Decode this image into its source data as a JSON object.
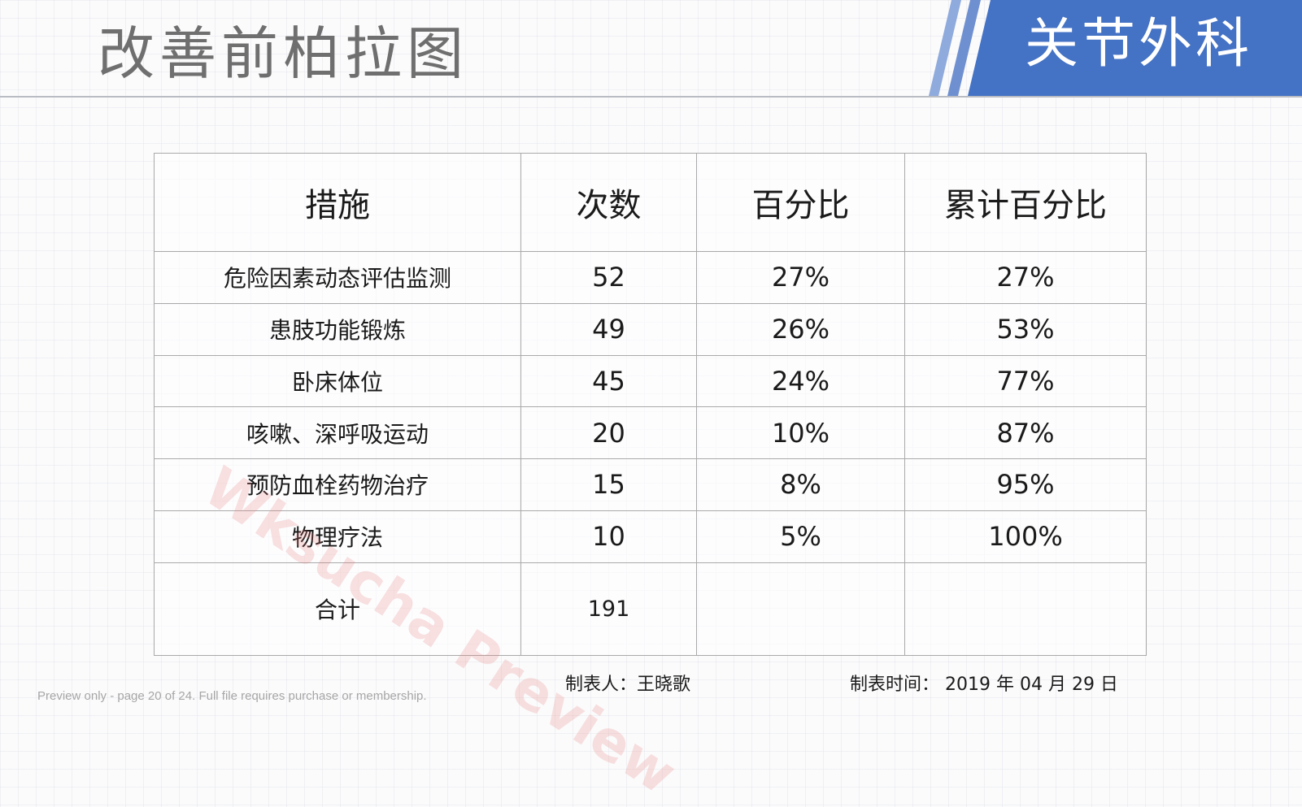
{
  "page": {
    "title": "改善前柏拉图",
    "department": "关节外科"
  },
  "table": {
    "headers": [
      "措施",
      "次数",
      "百分比",
      "累计百分比"
    ],
    "rows": [
      {
        "measure": "危险因素动态评估监测",
        "count": "52",
        "percent": "27%",
        "cumulative": "27%"
      },
      {
        "measure": "患肢功能锻炼",
        "count": "49",
        "percent": "26%",
        "cumulative": "53%"
      },
      {
        "measure": "卧床体位",
        "count": "45",
        "percent": "24%",
        "cumulative": "77%"
      },
      {
        "measure": "咳嗽、深呼吸运动",
        "count": "20",
        "percent": "10%",
        "cumulative": "87%"
      },
      {
        "measure": "预防血栓药物治疗",
        "count": "15",
        "percent": "8%",
        "cumulative": "95%"
      },
      {
        "measure": "物理疗法",
        "count": "10",
        "percent": "5%",
        "cumulative": "100%"
      }
    ],
    "total": {
      "label": "合计",
      "count": "191"
    }
  },
  "footer": {
    "author": "制表人：王晓歌",
    "date": "制表时间： 2019 年  04 月  29 日",
    "preview_note": "Preview only - page 20 of 24. Full file requires purchase or membership."
  },
  "watermark": "Wksucha Preview",
  "colors": {
    "accent_blue": "#4472c4",
    "light_blue": "#8faadc",
    "title_gray": "#6f6f6f"
  }
}
